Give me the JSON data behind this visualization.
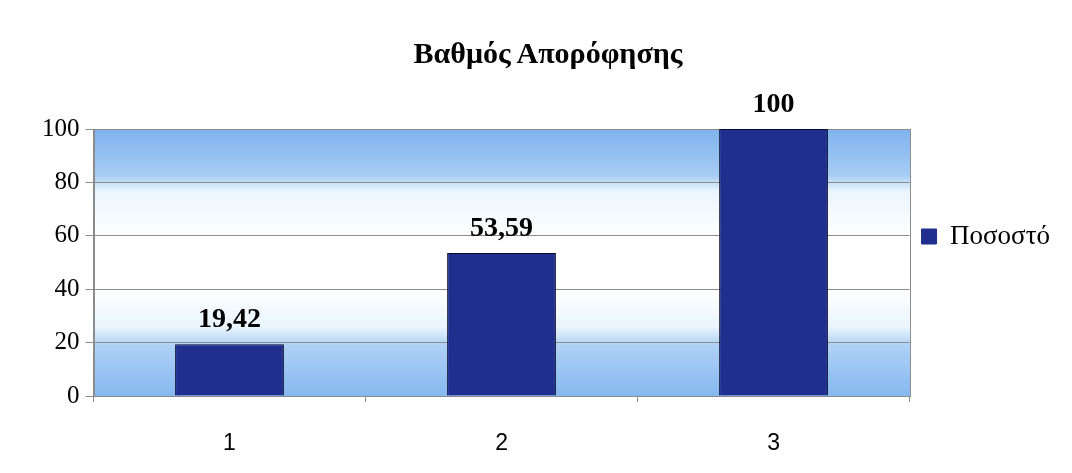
{
  "chart_data": {
    "type": "bar",
    "title": "Βαθμός Απορόφησης",
    "categories": [
      "1",
      "2",
      "3"
    ],
    "series": [
      {
        "name": "Ποσοστό",
        "color": "#202f8e",
        "values": [
          19.42,
          53.59,
          100
        ],
        "value_labels": [
          "19,42",
          "53,59",
          "100"
        ]
      }
    ],
    "ylim": [
      0,
      100
    ],
    "yticks": [
      0,
      20,
      40,
      60,
      80,
      100
    ],
    "grid": "y",
    "legend": "right"
  }
}
